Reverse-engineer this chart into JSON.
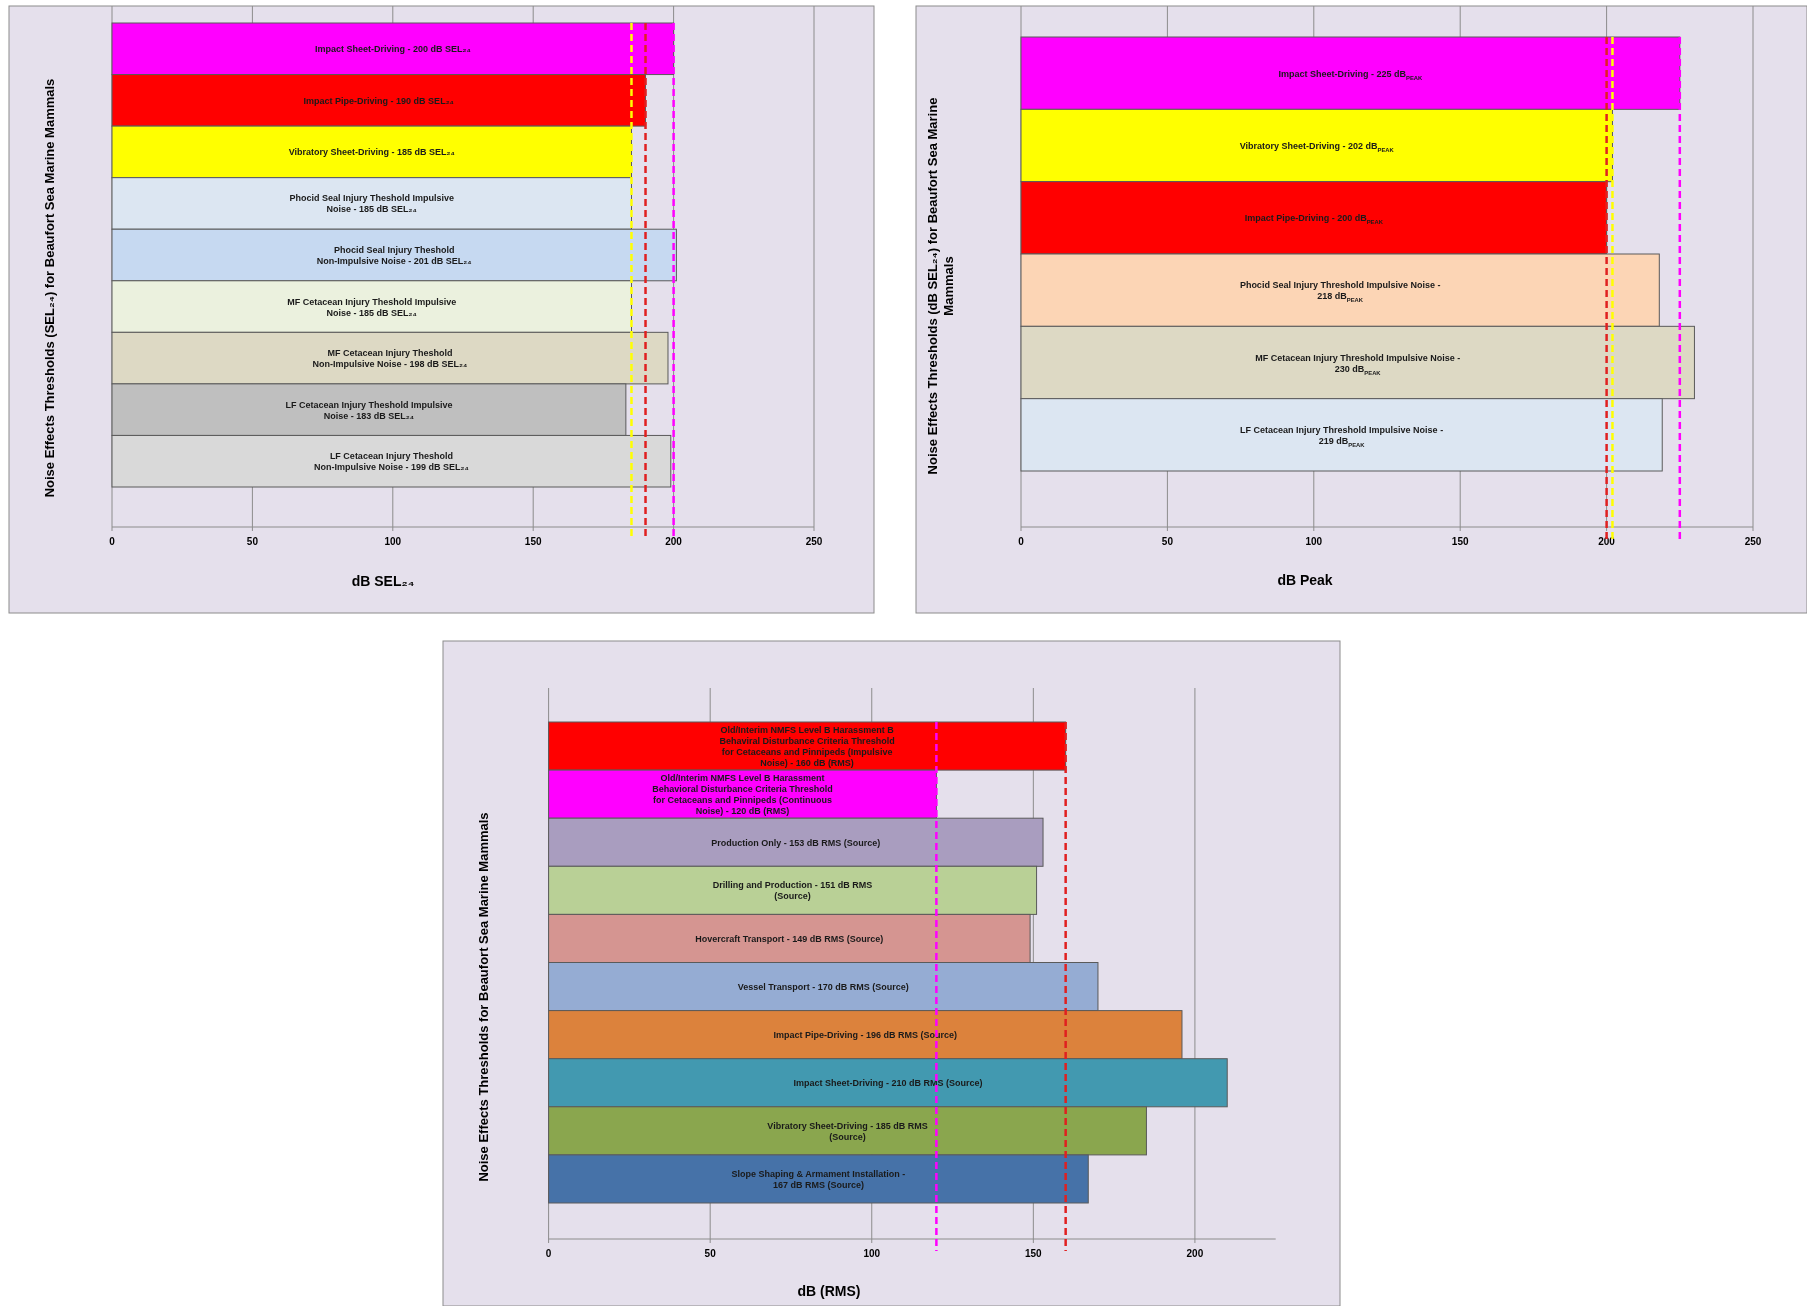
{
  "chart_data": [
    {
      "type": "bar",
      "orientation": "horizontal",
      "xlabel": "dB SEL₂₄",
      "ylabel": "Noise Effects Thresholds (SEL₂₄) for Beaufort Sea Marine Mammals",
      "categories": [
        "Impact Sheet-Driving - 200 dB SEL₂₄",
        "Impact Pipe-Driving - 190 dB SEL₂₄",
        "Vibratory Sheet-Driving - 185 dB SEL₂₄",
        "Phocid Seal Injury Theshold Impulsive Noise - 185 dB SEL₂₄",
        "Phocid Seal Injury Theshold Non-Impulsive Noise - 201 dB SEL₂₄",
        "MF Cetacean Injury Theshold Impulsive Noise - 185 dB SEL₂₄",
        "MF Cetacean Injury Theshold Non-Impulsive Noise - 198 dB SEL₂₄",
        "LF Cetacean Injury Theshold Impulsive Noise - 183 dB SEL₂₄",
        "LF Cetacean Injury Theshold Non-Impulsive Noise - 199 dB SEL₂₄"
      ],
      "values": [
        200,
        190,
        185,
        185,
        201,
        185,
        198,
        183,
        199
      ],
      "colors": [
        "#ff00ff",
        "#ff0000",
        "#ffff00",
        "#dce6f2",
        "#c6d9f1",
        "#ebf1de",
        "#ddd9c4",
        "#bfbfbf",
        "#d9d9d9"
      ],
      "xlim": [
        0,
        250
      ],
      "xticks": [
        0,
        50,
        100,
        150,
        200,
        250
      ],
      "grid": "x",
      "ref_lines": [
        {
          "axis": "x",
          "value": 185,
          "color": "#ffff00",
          "line_style": "dashed"
        },
        {
          "axis": "x",
          "value": 190,
          "color": "#e02020",
          "line_style": "dashed"
        },
        {
          "axis": "x",
          "value": 200,
          "color": "#ff00ff",
          "line_style": "dashed"
        }
      ]
    },
    {
      "type": "bar",
      "orientation": "horizontal",
      "xlabel": "dB Peak",
      "ylabel": "Noise Effects Thresholds (dB SEL₂₄) for Beaufort Sea Marine Mammals",
      "categories": [
        "Impact Sheet-Driving - 225 dB$_{PEAK}$",
        "Vibratory Sheet-Driving - 202 dB$_{PEAK}$",
        "Impact Pipe-Driving - 200 dB$_{PEAK}$",
        "Phocid Seal Injury Threshold Impulsive Noise - 218 dB$_{PEAK}$",
        "MF Cetacean Injury Threshold Impulsive Noise - 230 dB$_{PEAK}$",
        "LF Cetacean Injury Threshold Impulsive Noise - 219 dB$_{PEAK}$"
      ],
      "values": [
        225,
        202,
        200,
        218,
        230,
        219
      ],
      "colors": [
        "#ff00ff",
        "#ffff00",
        "#ff0000",
        "#fcd5b5",
        "#ddd9c4",
        "#dce6f2"
      ],
      "xlim": [
        0,
        250
      ],
      "xticks": [
        0,
        50,
        100,
        150,
        200,
        250
      ],
      "grid": "x",
      "ref_lines": [
        {
          "axis": "x",
          "value": 200,
          "color": "#e02020",
          "line_style": "dashed"
        },
        {
          "axis": "x",
          "value": 202,
          "color": "#ffff00",
          "line_style": "dashed"
        },
        {
          "axis": "x",
          "value": 225,
          "color": "#ff00ff",
          "line_style": "dashed"
        }
      ]
    },
    {
      "type": "bar",
      "orientation": "horizontal",
      "xlabel": "dB (RMS)",
      "ylabel": "Noise Effects Thresholds for Beaufort Sea Marine Mammals",
      "categories": [
        "Old/Interim NMFS Level B Harassment B Behaviral Disturbance Criteria Threshold for Cetaceans and Pinnipeds (Impulsive Noise) - 160 dB (RMS)",
        "Old/Interim NMFS Level B Harassment Behavioral Disturbance Criteria Threshold for Cetaceans and Pinnipeds (Continuous Noise) - 120 dB (RMS)",
        "Production Only - 153 dB RMS (Source)",
        "Drilling and Production - 151 dB RMS (Source)",
        "Hovercraft Transport - 149 dB RMS (Source)",
        "Vessel Transport - 170 dB RMS (Source)",
        "Impact Pipe-Driving - 196 dB RMS (Source)",
        "Impact Sheet-Driving - 210 dB RMS (Source)",
        "Vibratory Sheet-Driving - 185 dB RMS (Source)",
        "Slope Shaping & Armament Installation - 167 dB RMS (Source)"
      ],
      "values": [
        160,
        120,
        153,
        151,
        149,
        170,
        196,
        210,
        185,
        167
      ],
      "colors": [
        "#ff0000",
        "#ff00ff",
        "#a99dbf",
        "#b9d096",
        "#d59591",
        "#95acd3",
        "#dc823c",
        "#4299b0",
        "#8aa64e",
        "#4672a8"
      ],
      "xlim": [
        0,
        225
      ],
      "xticks": [
        0,
        50,
        100,
        150,
        200
      ],
      "grid": "x",
      "ref_lines": [
        {
          "axis": "x",
          "value": 120,
          "color": "#ff00ff",
          "line_style": "dashed"
        },
        {
          "axis": "x",
          "value": 160,
          "color": "#e02020",
          "line_style": "dashed"
        }
      ]
    }
  ]
}
